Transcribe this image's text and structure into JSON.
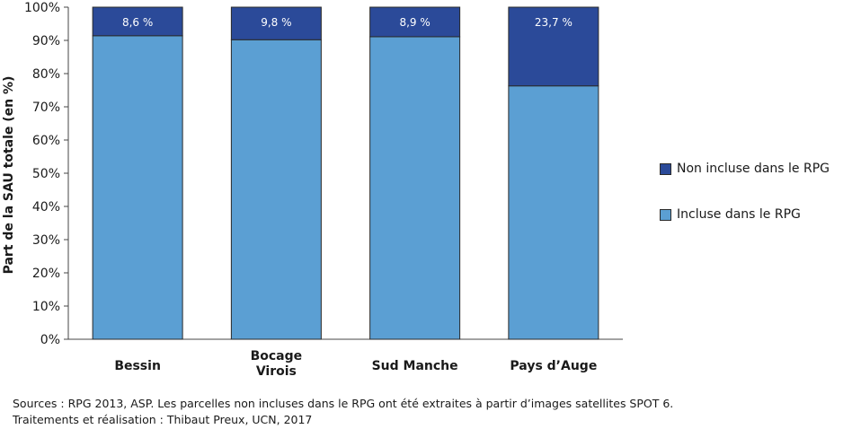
{
  "chart_data": {
    "type": "bar",
    "stacked": true,
    "categories": [
      "Bessin",
      "Bocage\nVirois",
      "Sud Manche",
      "Pays d’Auge"
    ],
    "series": [
      {
        "name": "Incluse dans le RPG",
        "values": [
          91.4,
          90.2,
          91.1,
          76.3
        ],
        "color": "#5b9fd3"
      },
      {
        "name": "Non incluse dans le RPG",
        "values": [
          8.6,
          9.8,
          8.9,
          23.7
        ],
        "color": "#2b4a99"
      }
    ],
    "data_labels": [
      "8,6 %",
      "9,8 %",
      "8,9 %",
      "23,7 %"
    ],
    "ylabel": "Part de la SAU  totale (en %)",
    "xlabel": "",
    "ylim": [
      0,
      100
    ],
    "yticks": [
      "0%",
      "10%",
      "20%",
      "30%",
      "40%",
      "50%",
      "60%",
      "70%",
      "80%",
      "90%",
      "100%"
    ],
    "grid": false,
    "legend_position": "right",
    "legend": [
      "Non incluse dans le RPG",
      "Incluse dans le RPG"
    ]
  },
  "legend": {
    "items": [
      {
        "label": "Non incluse dans le RPG",
        "color": "#2b4a99"
      },
      {
        "label": "Incluse dans le RPG",
        "color": "#5b9fd3"
      }
    ]
  },
  "source": {
    "line1": "Sources : RPG 2013, ASP. Les parcelles non incluses dans le RPG ont été extraites à partir d’images satellites SPOT 6.",
    "line2": "Traitements et réalisation : Thibaut Preux, UCN, 2017"
  }
}
